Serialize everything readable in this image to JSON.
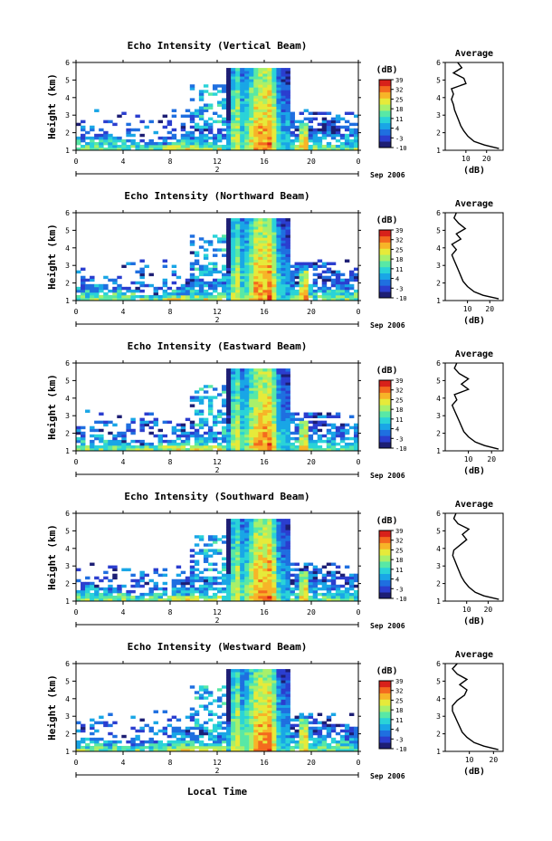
{
  "figure": {
    "date_label": "Sep 2006",
    "xlabel": "Local Time",
    "xticks": [
      "0",
      "4",
      "8",
      "12",
      "16",
      "20",
      "0"
    ],
    "day_marker": "2",
    "cbar_unit": "(dB)",
    "avg_xlabel": "(dB)",
    "colormap": [
      "#1d1e74",
      "#2b3ecf",
      "#1f6fe0",
      "#19a6e6",
      "#2ad3d8",
      "#58e8a6",
      "#a8f06a",
      "#e6ea3a",
      "#f7b428",
      "#f46a1e",
      "#d8211a"
    ]
  },
  "chart_data": [
    {
      "type": "heatmap",
      "title": "Echo Intensity (Vertical Beam)",
      "ylabel": "Height (km)",
      "ylim": [
        1,
        6
      ],
      "yticks": [
        "1",
        "2",
        "3",
        "4",
        "5",
        "6"
      ],
      "xlim_hours": [
        0,
        24
      ],
      "colorbar": {
        "ticks": [
          "-10",
          "-3",
          "4",
          "11",
          "18",
          "25",
          "32",
          "39"
        ],
        "range": [
          -10,
          39
        ]
      },
      "average": {
        "title": "Average",
        "xlabel": "(dB)",
        "xticks": [
          "10",
          "20"
        ],
        "xlim": [
          0,
          28
        ],
        "height_km": [
          1.1,
          1.3,
          1.5,
          1.8,
          2.1,
          2.4,
          2.7,
          3.0,
          3.3,
          3.6,
          3.9,
          4.2,
          4.5,
          4.8,
          5.1,
          5.4,
          5.7,
          6.0
        ],
        "values_db": [
          26,
          19,
          14,
          11,
          9,
          7.5,
          6.5,
          5.5,
          4.5,
          4,
          3,
          4,
          3,
          10,
          9,
          4,
          8,
          6
        ]
      }
    },
    {
      "type": "heatmap",
      "title": "Echo Intensity (Northward Beam)",
      "ylabel": "Height (km)",
      "ylim": [
        1,
        6
      ],
      "yticks": [
        "1",
        "2",
        "3",
        "4",
        "5",
        "6"
      ],
      "xlim_hours": [
        0,
        24
      ],
      "colorbar": {
        "ticks": [
          "-10",
          "-3",
          "4",
          "11",
          "18",
          "25",
          "32",
          "39"
        ],
        "range": [
          -10,
          39
        ]
      },
      "average": {
        "title": "Average",
        "xlabel": "(dB)",
        "xticks": [
          "10",
          "20"
        ],
        "xlim": [
          0,
          26
        ],
        "height_km": [
          1.1,
          1.3,
          1.5,
          1.8,
          2.1,
          2.4,
          2.7,
          3.0,
          3.3,
          3.6,
          3.9,
          4.2,
          4.5,
          4.8,
          5.1,
          5.4,
          5.7,
          6.0
        ],
        "values_db": [
          24,
          17,
          13,
          10,
          8,
          7,
          6,
          5,
          4,
          3,
          5,
          3,
          7,
          5,
          9,
          6,
          4,
          5
        ]
      }
    },
    {
      "type": "heatmap",
      "title": "Echo Intensity (Eastward Beam)",
      "ylabel": "Height (km)",
      "ylim": [
        1,
        6
      ],
      "yticks": [
        "1",
        "2",
        "3",
        "4",
        "5",
        "6"
      ],
      "xlim_hours": [
        0,
        24
      ],
      "colorbar": {
        "ticks": [
          "-10",
          "-3",
          "4",
          "11",
          "18",
          "25",
          "32",
          "39"
        ],
        "range": [
          -10,
          39
        ]
      },
      "average": {
        "title": "Average",
        "xlabel": "(dB)",
        "xticks": [
          "10",
          "20"
        ],
        "xlim": [
          0,
          25
        ],
        "height_km": [
          1.1,
          1.3,
          1.5,
          1.8,
          2.1,
          2.4,
          2.7,
          3.0,
          3.3,
          3.6,
          3.9,
          4.2,
          4.5,
          4.8,
          5.1,
          5.4,
          5.7,
          6.0
        ],
        "values_db": [
          23,
          17,
          13,
          10,
          8,
          7,
          6,
          5,
          4,
          3,
          5,
          4,
          10,
          7,
          10,
          6,
          4,
          5
        ]
      }
    },
    {
      "type": "heatmap",
      "title": "Echo Intensity (Southward Beam)",
      "ylabel": "Height (km)",
      "ylim": [
        1,
        6
      ],
      "yticks": [
        "1",
        "2",
        "3",
        "4",
        "5",
        "6"
      ],
      "xlim_hours": [
        0,
        24
      ],
      "colorbar": {
        "ticks": [
          "-10",
          "-3",
          "4",
          "11",
          "18",
          "25",
          "32",
          "39"
        ],
        "range": [
          -10,
          39
        ]
      },
      "average": {
        "title": "Average",
        "xlabel": "(dB)",
        "xticks": [
          "10",
          "20"
        ],
        "xlim": [
          0,
          27
        ],
        "height_km": [
          1.1,
          1.3,
          1.5,
          1.8,
          2.1,
          2.4,
          2.7,
          3.0,
          3.3,
          3.6,
          3.9,
          4.2,
          4.5,
          4.8,
          5.1,
          5.4,
          5.7,
          6.0
        ],
        "values_db": [
          25,
          18,
          14,
          11,
          9,
          7.5,
          6.5,
          5.5,
          4.5,
          3.5,
          4,
          7,
          10,
          8,
          11,
          6,
          4,
          5
        ]
      }
    },
    {
      "type": "heatmap",
      "title": "Echo Intensity (Westward Beam)",
      "ylabel": "Height (km)",
      "ylim": [
        1,
        6
      ],
      "yticks": [
        "1",
        "2",
        "3",
        "4",
        "5",
        "6"
      ],
      "xlim_hours": [
        0,
        24
      ],
      "colorbar": {
        "ticks": [
          "-10",
          "-3",
          "4",
          "11",
          "18",
          "25",
          "32",
          "39"
        ],
        "range": [
          -10,
          39
        ]
      },
      "average": {
        "title": "Average",
        "xlabel": "(dB)",
        "xticks": [
          "10",
          "20"
        ],
        "xlim": [
          0,
          24
        ],
        "height_km": [
          1.1,
          1.3,
          1.5,
          1.8,
          2.1,
          2.4,
          2.7,
          3.0,
          3.3,
          3.6,
          3.9,
          4.2,
          4.5,
          4.8,
          5.1,
          5.4,
          5.7,
          6.0
        ],
        "values_db": [
          22,
          16,
          12,
          9,
          7,
          6,
          5,
          4,
          3,
          3,
          5,
          8,
          9,
          6,
          9,
          5,
          3,
          5
        ]
      }
    }
  ]
}
